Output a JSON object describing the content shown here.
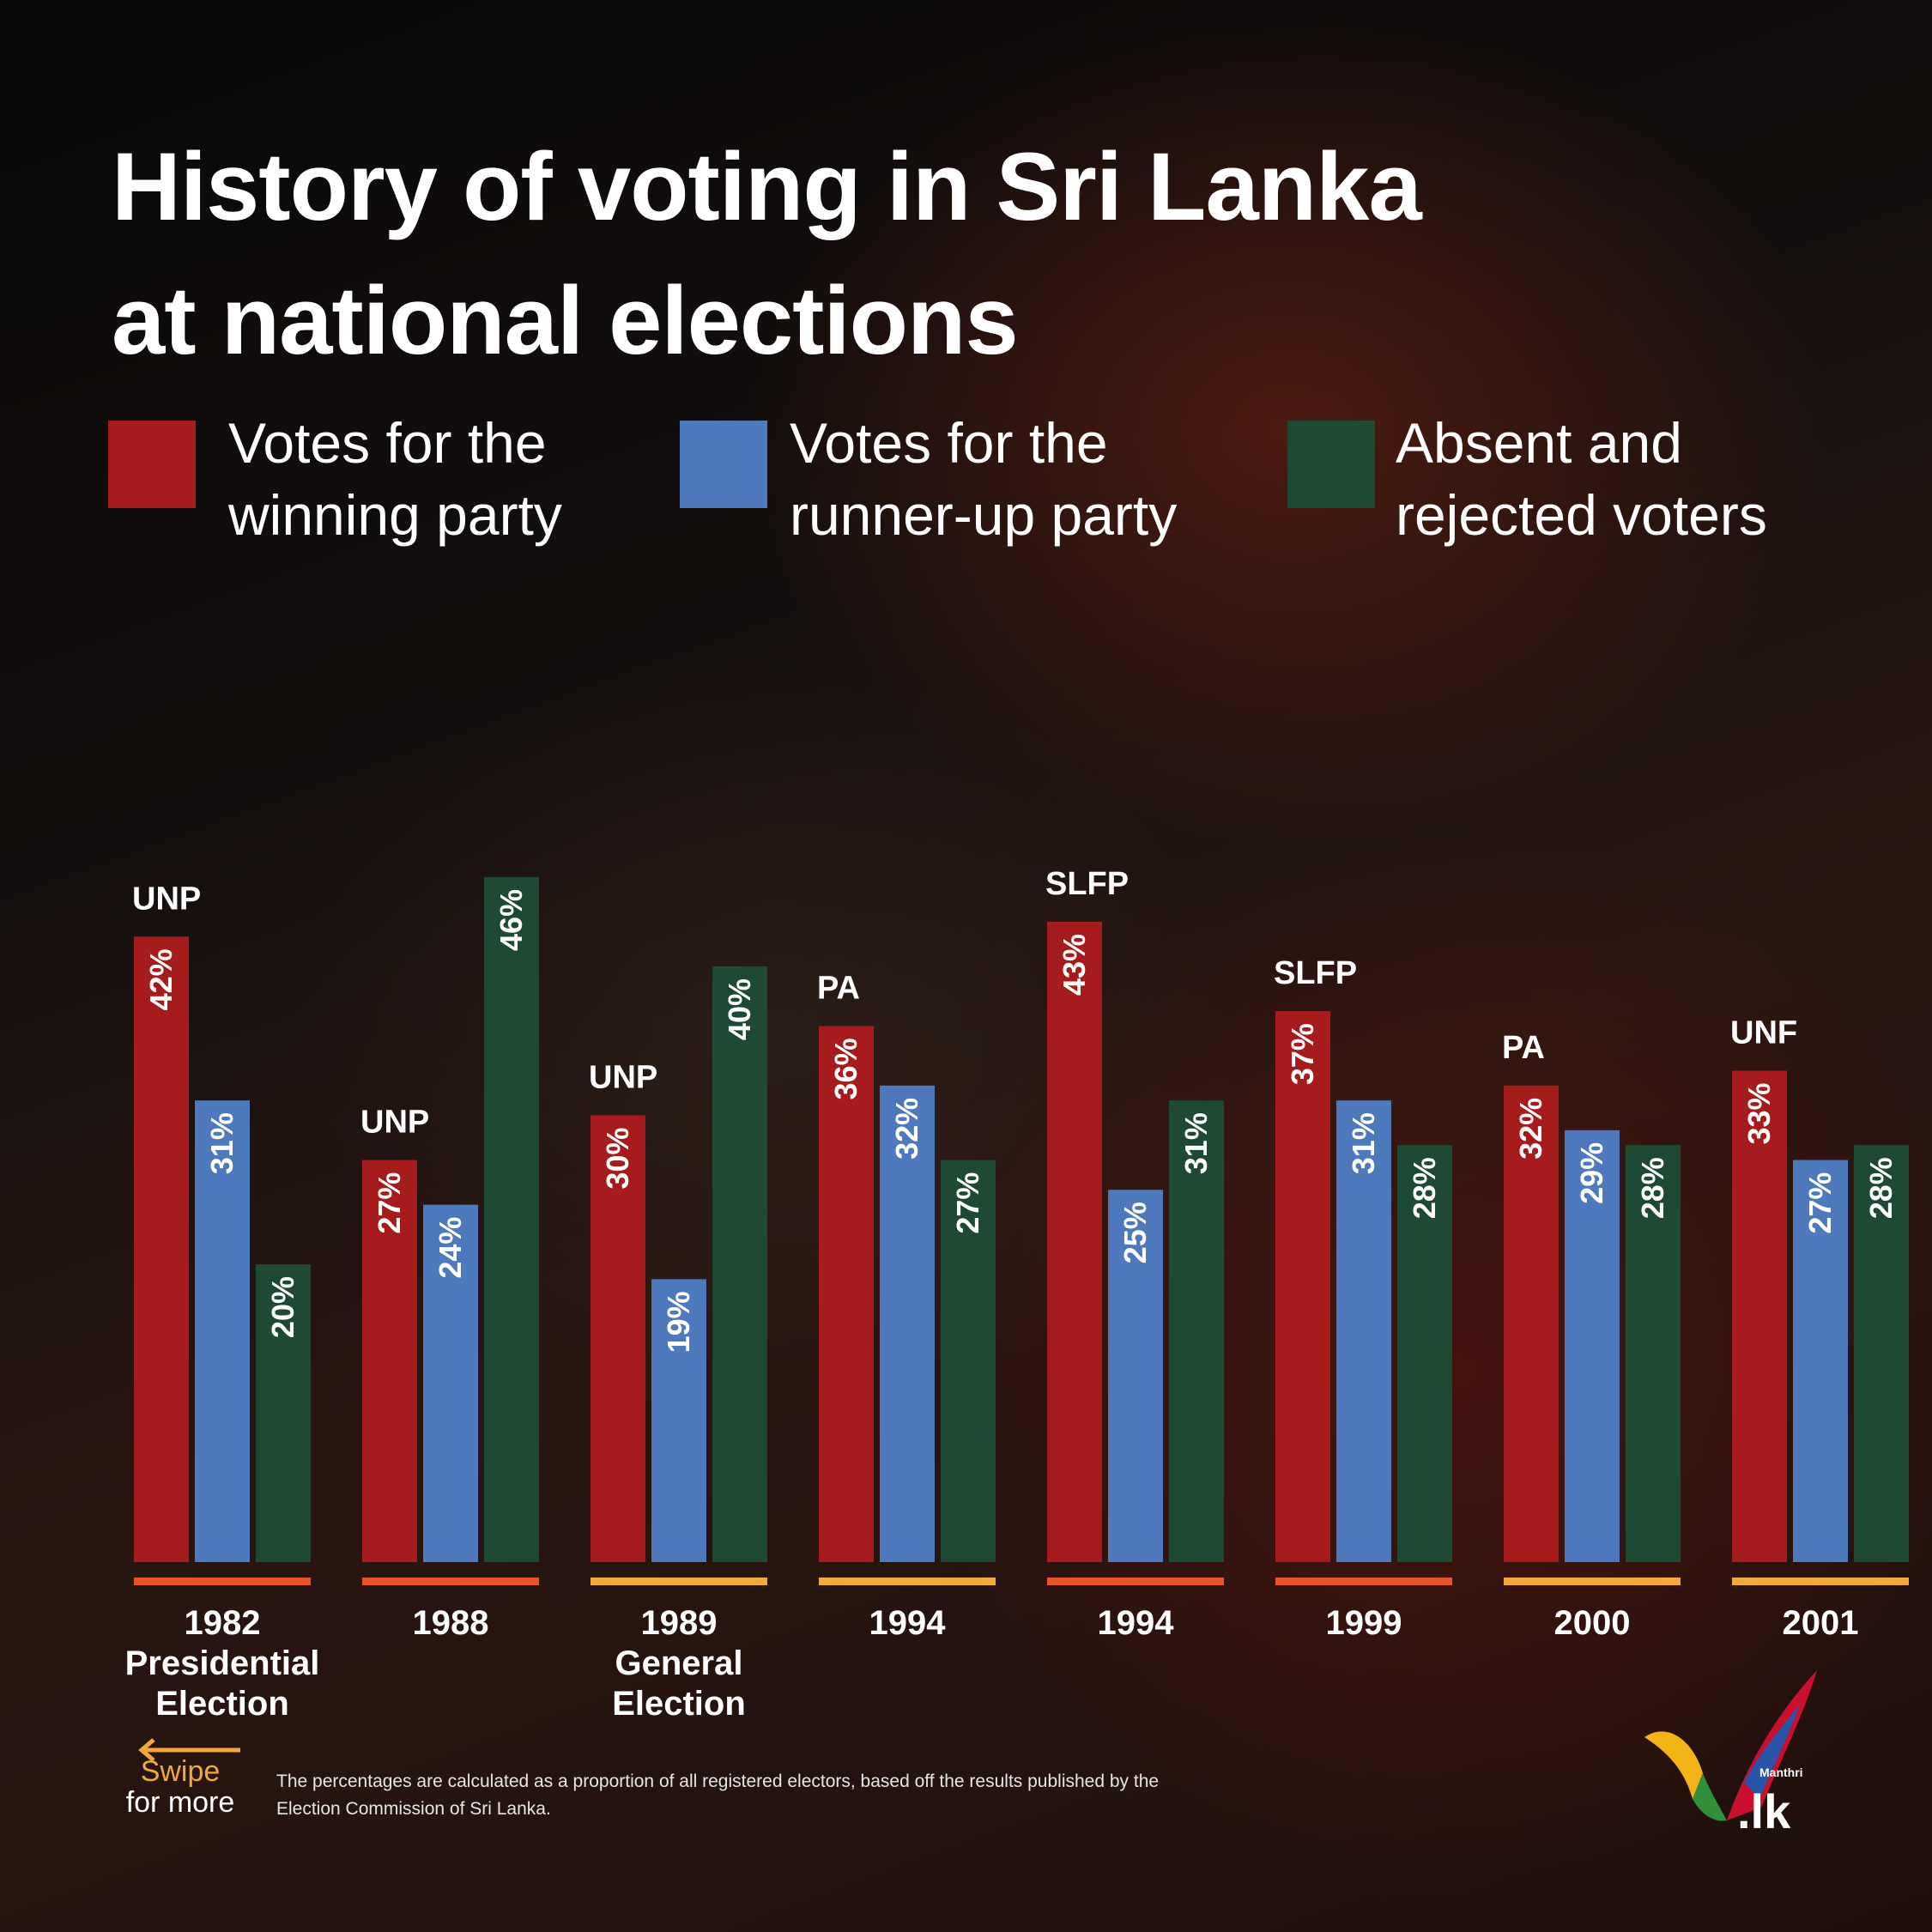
{
  "title_line1": "History of voting in Sri Lanka",
  "title_line2": "at national elections",
  "legend": [
    {
      "line1": "Votes for the",
      "line2": "winning party",
      "color": "#a61c1c"
    },
    {
      "line1": "Votes for the",
      "line2": "runner-up party",
      "color": "#4f79bd"
    },
    {
      "line1": "Absent and",
      "line2": "rejected voters",
      "color": "#1e4a34"
    }
  ],
  "chart_data": {
    "type": "bar",
    "categories": [
      [
        "1982",
        "Presidential",
        "Election"
      ],
      [
        "1988"
      ],
      [
        "1989",
        "General",
        "Election"
      ],
      [
        "1994"
      ],
      [
        "1994"
      ],
      [
        "1999"
      ],
      [
        "2000"
      ],
      [
        "2001"
      ]
    ],
    "winning_party": [
      "UNP",
      "UNP",
      "UNP",
      "PA",
      "SLFP",
      "SLFP",
      "PA",
      "UNF"
    ],
    "series": [
      {
        "name": "Votes for the winning party",
        "color": "#a61c1c",
        "values": [
          42,
          27,
          30,
          36,
          43,
          37,
          32,
          33
        ]
      },
      {
        "name": "Votes for the runner-up party",
        "color": "#4f79bd",
        "values": [
          31,
          24,
          19,
          32,
          25,
          31,
          29,
          27
        ]
      },
      {
        "name": "Absent and rejected voters",
        "color": "#1e4a34",
        "values": [
          20,
          46,
          40,
          27,
          31,
          28,
          28,
          28
        ]
      }
    ],
    "value_suffix": "%",
    "underline_colors": [
      "#e8542a",
      "#e8542a",
      "#f2a93b",
      "#f2a93b",
      "#e8542a",
      "#e8542a",
      "#f2a93b",
      "#f2a93b"
    ]
  },
  "footnote": "The percentages are calculated as a proportion of all registered electors, based off the results published by the Election Commission of Sri Lanka.",
  "swipe": {
    "line1": "Swipe",
    "line2": "for more",
    "color": "#f2a93b"
  },
  "logo": {
    "top": "Manthri",
    "bottom": ".lk"
  }
}
